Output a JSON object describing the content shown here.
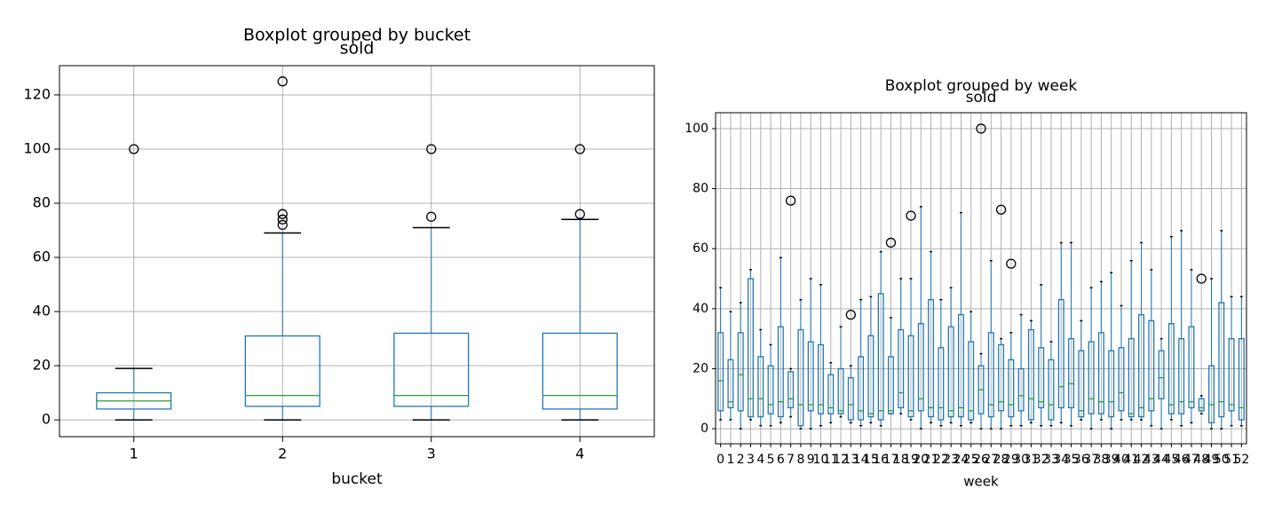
{
  "chart_data": [
    {
      "type": "box",
      "title": "Boxplot grouped by bucket",
      "subtitle": "sold",
      "x_label": "bucket",
      "categories": [
        "1",
        "2",
        "3",
        "4"
      ],
      "whislo": [
        0,
        0,
        0,
        0
      ],
      "q1": [
        4,
        5,
        5,
        4
      ],
      "med": [
        7,
        9,
        9,
        9
      ],
      "q3": [
        10,
        31,
        32,
        32
      ],
      "whishi": [
        19,
        69,
        71,
        74
      ],
      "fliers": [
        [
          100
        ],
        [
          72,
          74,
          76,
          125
        ],
        [
          75,
          100
        ],
        [
          76,
          100
        ]
      ],
      "box_color": "#1f77b4",
      "median_color": "#2ca02c",
      "flier_color": "#000000",
      "ylim": [
        -6.2,
        130.8
      ],
      "yticks": [
        0,
        20,
        40,
        60,
        80,
        100,
        120
      ],
      "grid": true
    },
    {
      "type": "box",
      "title": "Boxplot grouped by week",
      "subtitle": "sold",
      "x_label": "week",
      "categories": [
        "0",
        "1",
        "2",
        "3",
        "4",
        "5",
        "6",
        "7",
        "8",
        "9",
        "10",
        "11",
        "12",
        "13",
        "14",
        "15",
        "16",
        "17",
        "18",
        "19",
        "20",
        "21",
        "22",
        "23",
        "24",
        "25",
        "26",
        "27",
        "28",
        "29",
        "30",
        "31",
        "32",
        "33",
        "34",
        "35",
        "36",
        "37",
        "38",
        "39",
        "40",
        "41",
        "42",
        "43",
        "44",
        "45",
        "46",
        "47",
        "48",
        "49",
        "50",
        "51",
        "52"
      ],
      "whislo": [
        3,
        3,
        0,
        3,
        1,
        1,
        2,
        4,
        0,
        0,
        1,
        2,
        4,
        2,
        1,
        2,
        1,
        5,
        5,
        3,
        0,
        2,
        1,
        2,
        1,
        2,
        0,
        0,
        0,
        1,
        1,
        2,
        1,
        1,
        2,
        1,
        3,
        0,
        3,
        0,
        3,
        3,
        3,
        1,
        0,
        3,
        1,
        2,
        5,
        0,
        0,
        1,
        1
      ],
      "q1": [
        6,
        7,
        6,
        4,
        4,
        5,
        4,
        7,
        1,
        6,
        5,
        5,
        5,
        3,
        3,
        4,
        3,
        5,
        7,
        4,
        6,
        4,
        3,
        4,
        4,
        3,
        5,
        4,
        6,
        4,
        6,
        3,
        7,
        3,
        7,
        7,
        4,
        5,
        5,
        4,
        6,
        4,
        4,
        6,
        10,
        5,
        5,
        7,
        6,
        2,
        4,
        6,
        3
      ],
      "med": [
        16,
        9,
        18,
        10,
        10,
        8,
        9,
        10,
        8,
        8,
        8,
        7,
        6,
        8,
        6,
        5,
        6,
        6,
        12,
        6,
        10,
        7,
        7,
        6,
        7,
        6,
        13,
        8,
        9,
        8,
        11,
        10,
        9,
        8,
        14,
        15,
        6,
        10,
        9,
        9,
        12,
        5,
        7,
        10,
        17,
        8,
        9,
        9,
        7,
        8,
        9,
        8,
        7
      ],
      "q3": [
        32,
        23,
        32,
        50,
        24,
        21,
        34,
        19,
        33,
        29,
        28,
        18,
        20,
        17,
        24,
        31,
        45,
        24,
        33,
        31,
        35,
        43,
        27,
        34,
        38,
        29,
        21,
        32,
        28,
        23,
        20,
        33,
        27,
        23,
        43,
        30,
        26,
        29,
        32,
        26,
        27,
        30,
        38,
        36,
        26,
        35,
        30,
        34,
        10,
        21,
        42,
        30,
        30
      ],
      "whishi": [
        47,
        39,
        42,
        53,
        33,
        28,
        57,
        20,
        43,
        50,
        48,
        22,
        34,
        21,
        43,
        44,
        59,
        37,
        50,
        50,
        74,
        59,
        43,
        47,
        72,
        39,
        25,
        56,
        30,
        32,
        38,
        36,
        48,
        29,
        62,
        62,
        36,
        47,
        49,
        52,
        41,
        56,
        62,
        53,
        30,
        64,
        66,
        53,
        11,
        50,
        66,
        44,
        44
      ],
      "fliers": [
        [],
        [],
        [],
        [],
        [],
        [],
        [],
        [
          76
        ],
        [],
        [],
        [],
        [],
        [],
        [
          38
        ],
        [],
        [],
        [],
        [
          62
        ],
        [],
        [
          71
        ],
        [],
        [],
        [],
        [],
        [],
        [],
        [
          100
        ],
        [],
        [
          73
        ],
        [
          55
        ],
        [],
        [],
        [],
        [],
        [],
        [],
        [],
        [],
        [],
        [],
        [],
        [],
        [],
        [],
        [],
        [],
        [],
        [],
        [
          50
        ],
        [],
        [],
        [],
        []
      ],
      "box_color": "#1f77b4",
      "median_color": "#2ca02c",
      "flier_color": "#000000",
      "ylim": [
        -5,
        105.3
      ],
      "yticks": [
        0,
        20,
        40,
        60,
        80,
        100
      ],
      "grid": true
    }
  ]
}
